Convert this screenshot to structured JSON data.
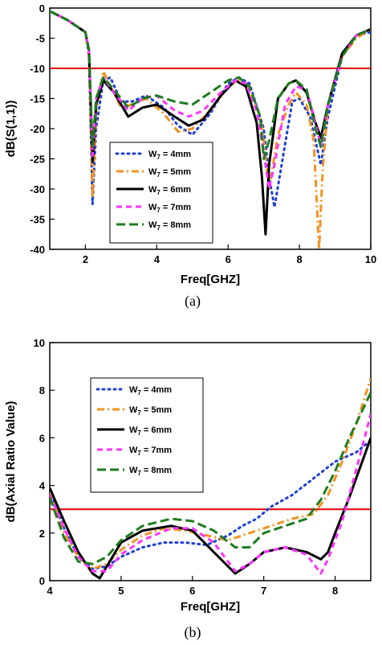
{
  "chart_data": [
    {
      "type": "line",
      "caption": "(a)",
      "xlabel": "Freq[GHZ]",
      "ylabel": "dB(S(1,1))",
      "xlim": [
        1,
        10
      ],
      "ylim": [
        -40,
        0
      ],
      "xticks": [
        2,
        4,
        6,
        8,
        10
      ],
      "yticks": [
        0,
        -5,
        -10,
        -15,
        -20,
        -25,
        -30,
        -35,
        -40
      ],
      "grid": false,
      "legend_position": "lower-left",
      "reference_line": {
        "y": -10,
        "color": "#e00000"
      },
      "series": [
        {
          "name": "W7 = 4mm",
          "label_main": "W",
          "label_sub": "7",
          "label_rest": " = 4mm",
          "color": "#1f3fd6",
          "dash": "2,5",
          "x": [
            1,
            1.5,
            2,
            2.1,
            2.2,
            2.3,
            2.5,
            2.7,
            3.0,
            3.3,
            3.7,
            4.2,
            4.6,
            5.0,
            5.5,
            6.0,
            6.3,
            6.6,
            7.0,
            7.15,
            7.3,
            7.5,
            7.8,
            8.0,
            8.3,
            8.6,
            8.8,
            9.2,
            9.6,
            10
          ],
          "y": [
            -0.5,
            -2,
            -4,
            -8,
            -32.5,
            -20,
            -12,
            -11.5,
            -15.5,
            -15.5,
            -14.5,
            -16.5,
            -19.5,
            -21,
            -17.5,
            -12.5,
            -11.5,
            -12.5,
            -20,
            -28,
            -33,
            -26,
            -15.5,
            -15,
            -18,
            -26,
            -18,
            -8,
            -4.5,
            -4
          ]
        },
        {
          "name": "W7 = 5mm",
          "label_main": "W",
          "label_sub": "7",
          "label_rest": " = 5mm",
          "color": "#f39220",
          "dash": "9,4,2,4",
          "x": [
            1,
            1.5,
            2,
            2.1,
            2.2,
            2.3,
            2.5,
            2.7,
            3.0,
            3.3,
            3.7,
            4.2,
            4.6,
            5.0,
            5.5,
            6.0,
            6.3,
            6.6,
            6.9,
            7.0,
            7.15,
            7.4,
            7.7,
            7.9,
            8.2,
            8.4,
            8.55,
            8.65,
            8.8,
            9.2,
            9.6,
            10
          ],
          "y": [
            -0.5,
            -2,
            -4,
            -8,
            -31.5,
            -17,
            -10.5,
            -13,
            -16.5,
            -16,
            -15,
            -17.5,
            -20.5,
            -20,
            -17,
            -13,
            -12,
            -13.5,
            -18,
            -22,
            -30,
            -21,
            -16,
            -14,
            -16,
            -22,
            -40,
            -27,
            -16,
            -8,
            -5,
            -3.5
          ]
        },
        {
          "name": "W7 = 6mm",
          "label_main": "W",
          "label_sub": "7",
          "label_rest": " = 6mm",
          "color": "#000000",
          "dash": "",
          "x": [
            1,
            1.5,
            2,
            2.1,
            2.2,
            2.3,
            2.5,
            2.8,
            3.2,
            3.6,
            4.0,
            4.5,
            4.9,
            5.3,
            5.8,
            6.2,
            6.5,
            6.8,
            6.95,
            7.05,
            7.15,
            7.4,
            7.7,
            7.9,
            8.2,
            8.45,
            8.6,
            8.8,
            9.2,
            9.6,
            10
          ],
          "y": [
            -0.5,
            -2,
            -4,
            -7,
            -25.5,
            -16,
            -12,
            -14,
            -18,
            -16.5,
            -16,
            -18,
            -19.5,
            -18.5,
            -14.5,
            -12,
            -13,
            -19,
            -28,
            -37.5,
            -26,
            -15,
            -12.5,
            -12,
            -14,
            -19,
            -21.5,
            -16,
            -7.5,
            -4.5,
            -3.5
          ]
        },
        {
          "name": "W7 = 7mm",
          "label_main": "W",
          "label_sub": "7",
          "label_rest": " = 7mm",
          "color": "#ff33ff",
          "dash": "7,5",
          "x": [
            1,
            1.5,
            2,
            2.1,
            2.2,
            2.3,
            2.5,
            2.8,
            3.2,
            3.6,
            4.0,
            4.5,
            4.9,
            5.3,
            5.8,
            6.2,
            6.5,
            6.8,
            7.0,
            7.15,
            7.3,
            7.6,
            7.9,
            8.2,
            8.45,
            8.6,
            8.8,
            9.2,
            9.6,
            10
          ],
          "y": [
            -0.5,
            -2,
            -4,
            -7,
            -24.5,
            -15,
            -11.5,
            -14,
            -17,
            -15,
            -14.5,
            -17,
            -18,
            -17,
            -14,
            -12,
            -12.5,
            -17,
            -24,
            -30,
            -26,
            -16,
            -13,
            -13.5,
            -19,
            -23,
            -16,
            -8,
            -4.5,
            -3.5
          ]
        },
        {
          "name": "W7 = 8mm",
          "label_main": "W",
          "label_sub": "7",
          "label_rest": " = 8mm",
          "color": "#1e7d1e",
          "dash": "11,5",
          "x": [
            1,
            1.5,
            2,
            2.1,
            2.2,
            2.3,
            2.5,
            2.8,
            3.2,
            3.6,
            4.0,
            4.5,
            5.0,
            5.5,
            6.0,
            6.3,
            6.6,
            6.9,
            7.0,
            7.15,
            7.4,
            7.7,
            7.9,
            8.2,
            8.45,
            8.6,
            8.8,
            9.2,
            9.6,
            10
          ],
          "y": [
            -0.5,
            -2,
            -4,
            -7,
            -23,
            -15,
            -11.5,
            -13.5,
            -16.5,
            -15,
            -14.5,
            -15.5,
            -16,
            -14,
            -12,
            -11.5,
            -13,
            -18,
            -25,
            -22,
            -15,
            -12.5,
            -12,
            -13.5,
            -20,
            -23,
            -16,
            -8,
            -4.5,
            -3.5
          ]
        }
      ]
    },
    {
      "type": "line",
      "caption": "(b)",
      "xlabel": "Freq[GHZ]",
      "ylabel": "dB(Axial Ratio Value)",
      "xlim": [
        4,
        8.5
      ],
      "ylim": [
        0,
        10
      ],
      "xticks": [
        4,
        5,
        6,
        7,
        8
      ],
      "yticks": [
        0,
        2,
        4,
        6,
        8,
        10
      ],
      "grid": false,
      "legend_position": "upper-left",
      "reference_line": {
        "y": 3,
        "color": "#e00000"
      },
      "series": [
        {
          "name": "W7 = 4mm",
          "label_main": "W",
          "label_sub": "7",
          "label_rest": " = 4mm",
          "color": "#1f3fd6",
          "dash": "2,5",
          "x": [
            4,
            4.2,
            4.4,
            4.6,
            4.8,
            5.0,
            5.3,
            5.6,
            5.9,
            6.2,
            6.5,
            6.7,
            6.9,
            7.1,
            7.4,
            7.7,
            8.0,
            8.3,
            8.5
          ],
          "y": [
            3.8,
            2.2,
            1.0,
            0.5,
            0.6,
            1.0,
            1.4,
            1.6,
            1.6,
            1.5,
            1.9,
            2.3,
            2.6,
            3.1,
            3.6,
            4.3,
            5.0,
            5.4,
            5.9
          ]
        },
        {
          "name": "W7 = 5mm",
          "label_main": "W",
          "label_sub": "7",
          "label_rest": " = 5mm",
          "color": "#f39220",
          "dash": "9,4,2,4",
          "x": [
            4,
            4.2,
            4.4,
            4.6,
            4.8,
            5.0,
            5.3,
            5.6,
            5.9,
            6.2,
            6.5,
            6.7,
            7.0,
            7.4,
            7.7,
            7.9,
            8.1,
            8.3,
            8.5
          ],
          "y": [
            3.7,
            2.0,
            1.0,
            0.5,
            0.7,
            1.3,
            1.9,
            2.2,
            2.1,
            1.9,
            1.7,
            1.9,
            2.2,
            2.6,
            2.8,
            3.6,
            5.0,
            6.6,
            8.5
          ]
        },
        {
          "name": "W7 = 6mm",
          "label_main": "W",
          "label_sub": "7",
          "label_rest": " = 6mm",
          "color": "#000000",
          "dash": "",
          "x": [
            4,
            4.2,
            4.4,
            4.6,
            4.7,
            4.8,
            5.0,
            5.3,
            5.7,
            6.0,
            6.3,
            6.6,
            6.8,
            7.0,
            7.3,
            7.6,
            7.8,
            7.9,
            8.0,
            8.2,
            8.5
          ],
          "y": [
            3.9,
            2.5,
            1.2,
            0.3,
            0.1,
            0.6,
            1.6,
            2.1,
            2.3,
            2.1,
            1.2,
            0.3,
            0.7,
            1.2,
            1.4,
            1.2,
            0.9,
            1.2,
            2.0,
            3.5,
            6.0
          ]
        },
        {
          "name": "W7 = 7mm",
          "label_main": "W",
          "label_sub": "7",
          "label_rest": " = 7mm",
          "color": "#ff33ff",
          "dash": "7,5",
          "x": [
            4,
            4.2,
            4.4,
            4.6,
            4.8,
            5.0,
            5.3,
            5.7,
            6.0,
            6.3,
            6.6,
            6.8,
            7.0,
            7.3,
            7.6,
            7.8,
            7.9,
            8.1,
            8.3,
            8.5
          ],
          "y": [
            3.6,
            2.2,
            1.0,
            0.4,
            0.4,
            1.1,
            1.7,
            2.2,
            2.2,
            1.6,
            0.4,
            0.7,
            1.2,
            1.4,
            1.1,
            0.3,
            0.9,
            2.5,
            4.7,
            7.0
          ]
        },
        {
          "name": "W7 = 8mm",
          "label_main": "W",
          "label_sub": "7",
          "label_rest": " = 8mm",
          "color": "#1e7d1e",
          "dash": "11,5",
          "x": [
            4,
            4.2,
            4.4,
            4.6,
            4.8,
            5.0,
            5.3,
            5.7,
            6.0,
            6.3,
            6.6,
            6.8,
            7.0,
            7.3,
            7.6,
            7.8,
            8.0,
            8.2,
            8.5
          ],
          "y": [
            3.5,
            1.8,
            0.8,
            0.7,
            1.0,
            1.7,
            2.3,
            2.6,
            2.5,
            2.1,
            1.4,
            1.4,
            2.0,
            2.3,
            2.6,
            3.4,
            4.6,
            6.0,
            7.9
          ]
        }
      ]
    }
  ]
}
